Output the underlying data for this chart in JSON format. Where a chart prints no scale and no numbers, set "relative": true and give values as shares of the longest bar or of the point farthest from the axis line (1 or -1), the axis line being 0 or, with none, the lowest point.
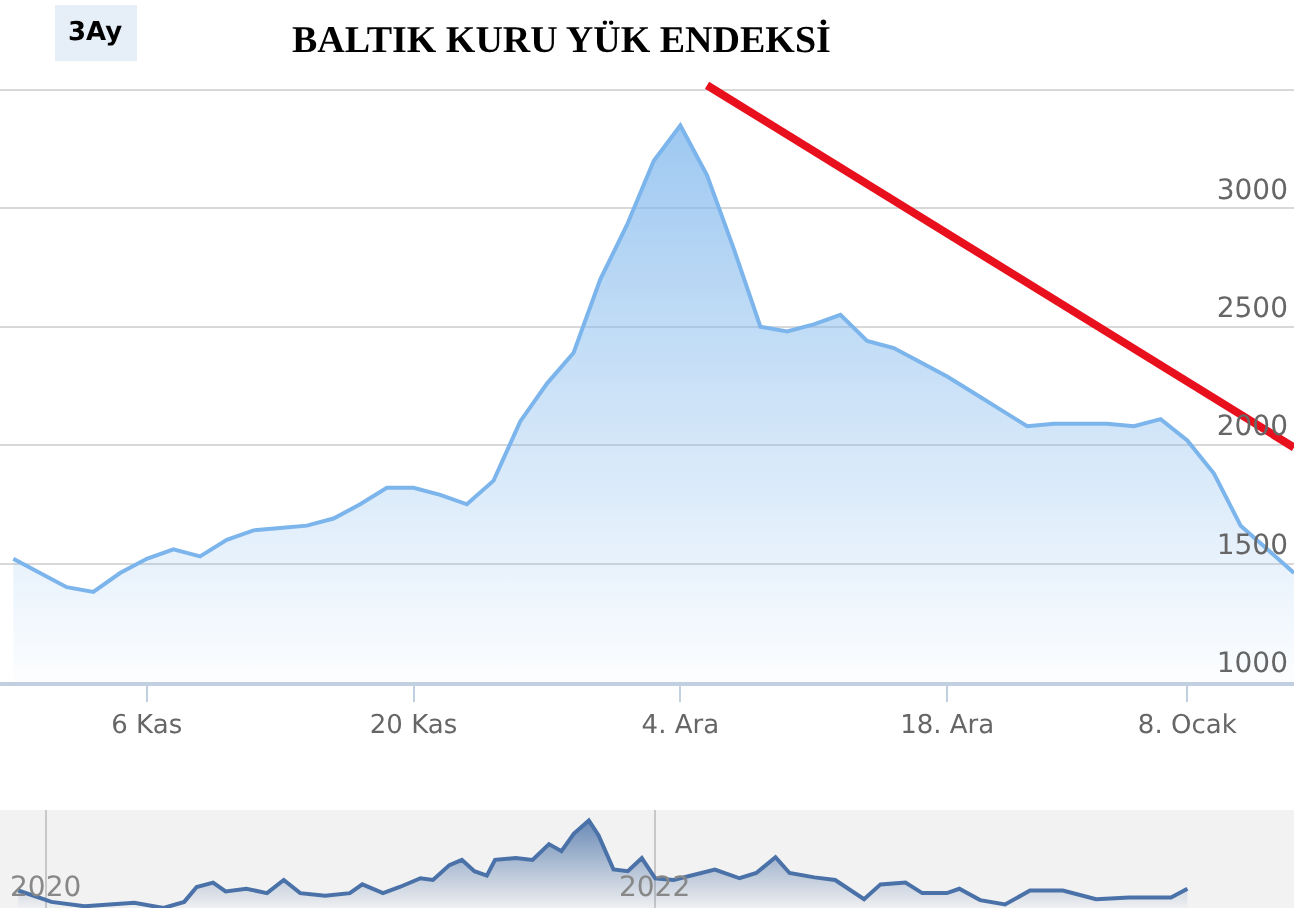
{
  "chart_data": [
    {
      "type": "area",
      "title": "BALTIK KURU YÜK ENDEKSİ",
      "annotations": [
        "3Ay"
      ],
      "categories": [
        null,
        null,
        null,
        null,
        null,
        "6 Kas",
        null,
        null,
        null,
        null,
        null,
        null,
        null,
        null,
        null,
        "20 Kas",
        null,
        null,
        null,
        null,
        null,
        null,
        null,
        null,
        null,
        "4. Ara",
        null,
        null,
        null,
        null,
        null,
        null,
        null,
        null,
        null,
        "18. Ara",
        null,
        null,
        null,
        null,
        null,
        null,
        null,
        null,
        "8. Ocak",
        null,
        null,
        null,
        null
      ],
      "ylim": [
        1000,
        3880
      ],
      "yticks": [
        1000,
        1500,
        2000,
        2500,
        3000,
        {
          "value": 3500,
          "label": null
        }
      ],
      "grid": "y",
      "legend": false,
      "series": [
        {
          "color": "#7cb5ec",
          "values": [
            1520,
            1460,
            1400,
            1380,
            1460,
            1520,
            1560,
            1530,
            1600,
            1640,
            1650,
            1660,
            1690,
            1750,
            1820,
            1820,
            1790,
            1750,
            1850,
            2100,
            2260,
            2390,
            2700,
            2930,
            3200,
            3350,
            3140,
            2830,
            2500,
            2480,
            2510,
            2550,
            2440,
            2410,
            2350,
            2290,
            2220,
            2150,
            2080,
            2090,
            2090,
            2090,
            2080,
            2110,
            2020,
            1880,
            1660,
            1560,
            1460
          ]
        },
        {
          "type": "line",
          "color": "#e8101c",
          "values": [
            null,
            null,
            null,
            null,
            null,
            null,
            null,
            null,
            null,
            null,
            null,
            null,
            null,
            null,
            null,
            null,
            null,
            null,
            null,
            null,
            null,
            null,
            null,
            null,
            null,
            null,
            3520,
            null,
            null,
            null,
            null,
            null,
            null,
            null,
            null,
            null,
            null,
            null,
            null,
            null,
            null,
            null,
            null,
            null,
            null,
            null,
            null,
            null,
            1990
          ]
        }
      ]
    },
    {
      "type": "area",
      "relative": true,
      "xlim": [
        2019.85,
        2024.1
      ],
      "xticks": [
        2020,
        2022
      ],
      "grid": "x",
      "legend": false,
      "series": [
        {
          "color": "#4a72a8",
          "x": [
            2019.91,
            2020.019,
            2020.128,
            2020.291,
            2020.387,
            2020.455,
            2020.496,
            2020.55,
            2020.591,
            2020.659,
            2020.727,
            2020.782,
            2020.836,
            2020.918,
            2020.999,
            2021.04,
            2021.108,
            2021.163,
            2021.231,
            2021.272,
            2021.326,
            2021.367,
            2021.408,
            2021.449,
            2021.476,
            2021.544,
            2021.599,
            2021.653,
            2021.694,
            2021.735,
            2021.784,
            2021.816,
            2021.865,
            2021.912,
            2021.958,
            2022.002,
            2022.062,
            2022.198,
            2022.279,
            2022.334,
            2022.397,
            2022.443,
            2022.525,
            2022.593,
            2022.688,
            2022.742,
            2022.824,
            2022.879,
            2022.96,
            2023.001,
            2023.069,
            2023.151,
            2023.233,
            2023.341,
            2023.45,
            2023.559,
            2023.696,
            2023.75
          ],
          "values": [
            0.2,
            0.07,
            0.02,
            0.06,
            0,
            0.07,
            0.24,
            0.29,
            0.19,
            0.22,
            0.17,
            0.32,
            0.17,
            0.14,
            0.17,
            0.27,
            0.17,
            0.24,
            0.34,
            0.32,
            0.49,
            0.55,
            0.42,
            0.37,
            0.55,
            0.57,
            0.55,
            0.73,
            0.65,
            0.85,
            1,
            0.83,
            0.44,
            0.42,
            0.57,
            0.34,
            0.32,
            0.44,
            0.34,
            0.4,
            0.58,
            0.4,
            0.35,
            0.32,
            0.1,
            0.27,
            0.29,
            0.17,
            0.17,
            0.22,
            0.09,
            0.04,
            0.2,
            0.2,
            0.1,
            0.12,
            0.12,
            0.22
          ]
        }
      ]
    }
  ]
}
